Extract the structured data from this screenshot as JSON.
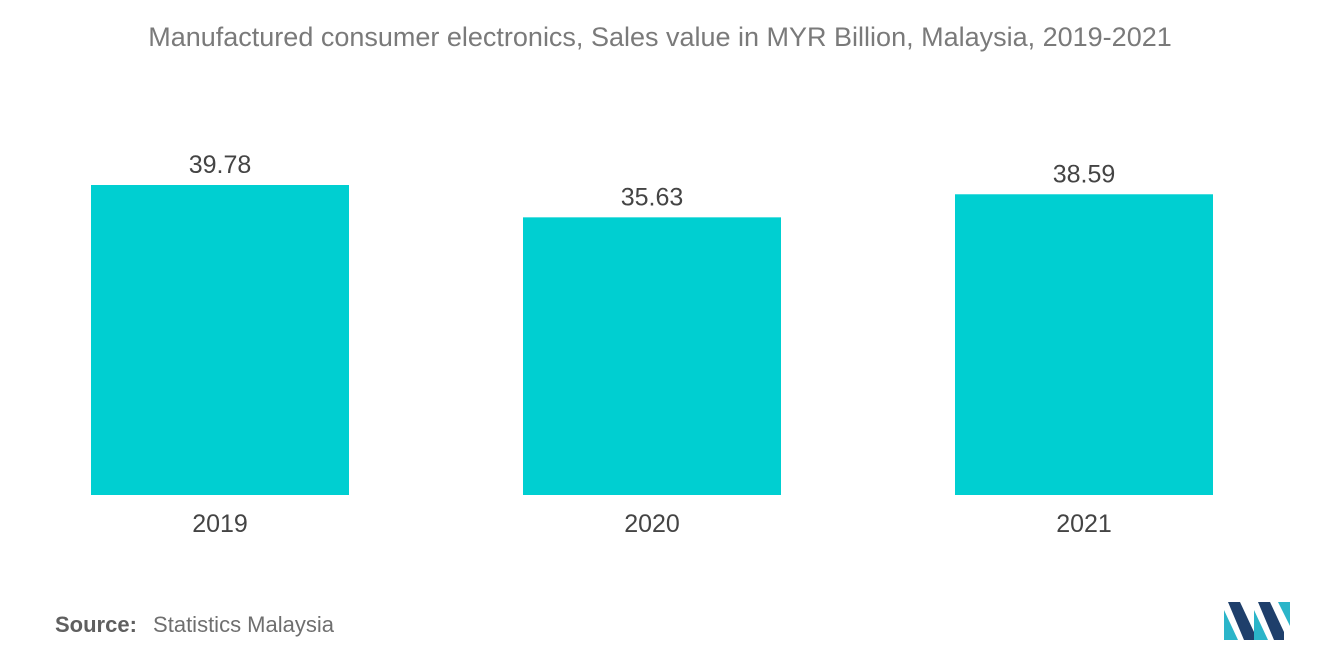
{
  "title": "Manufactured consumer electronics, Sales value in MYR Billion, Malaysia, 2019-2021",
  "source": {
    "label": "Source:",
    "text": "Statistics Malaysia"
  },
  "colors": {
    "bar": "#00cfd1",
    "text": "#444444",
    "logo_dark": "#1f3f6b",
    "logo_light": "#2bb5c9"
  },
  "chart_data": {
    "type": "bar",
    "title": "Manufactured consumer electronics, Sales value in MYR Billion, Malaysia, 2019-2021",
    "categories": [
      "2019",
      "2020",
      "2021"
    ],
    "values": [
      39.78,
      35.63,
      38.59
    ],
    "data_labels": [
      "39.78",
      "35.63",
      "38.59"
    ],
    "xlabel": "",
    "ylabel": "",
    "ylim": [
      0,
      39.78
    ],
    "grid": false,
    "legend": "none"
  }
}
